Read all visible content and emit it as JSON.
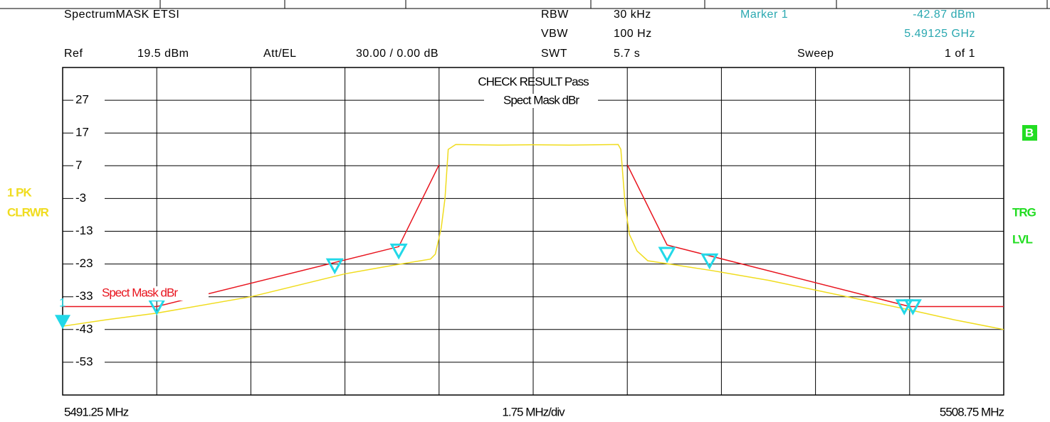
{
  "header": {
    "title": "SpectrumMASK ETSI",
    "rows": [
      [
        "RBW",
        "30 kHz",
        "Marker 1",
        "-42.87 dBm"
      ],
      [
        "VBW",
        "100 Hz",
        "5.49125 GHz"
      ],
      [
        "Ref",
        "19.5 dBm",
        "Att/EL",
        "30.00 / 0.00 dB",
        "SWT",
        "5.7 s",
        "Sweep",
        "1 of 1"
      ]
    ]
  },
  "chart_data": {
    "type": "line",
    "check_result": "CHECK RESULT  Pass",
    "limit_title": "Spect Mask dBr",
    "trace_label": [
      "1 PK",
      "CLRWR"
    ],
    "right_labels": [
      "B",
      "TRG",
      "LVL"
    ],
    "x_start_label": "5491.25 MHz",
    "x_div_label": "1.75 MHz/div",
    "x_stop_label": "5508.75 MHz",
    "xlim": [
      5491.25,
      5508.75
    ],
    "x_divisions": 10,
    "ylim": [
      -63,
      37
    ],
    "yticks": [
      27,
      17,
      7,
      -3,
      -13,
      -23,
      -33,
      -43,
      -53
    ],
    "grid": true,
    "series": [
      {
        "color": "#f0dc1e",
        "x": [
          5491.25,
          5492.07,
          5493.0,
          5494.75,
          5496.5,
          5497.36,
          5498.09,
          5498.18,
          5498.29,
          5498.36,
          5498.42,
          5498.56,
          5499.35,
          5500.0,
          5500.67,
          5501.58,
          5501.63,
          5501.71,
          5501.79,
          5501.93,
          5502.13,
          5502.53,
          5503.32,
          5504.38,
          5505.26,
          5507.0,
          5507.82,
          5508.75
        ],
        "values": [
          -42,
          -40,
          -38,
          -33,
          -26,
          -23.5,
          -21.5,
          -20,
          -12,
          -3,
          12,
          13.5,
          13.3,
          13.4,
          13.3,
          13.5,
          12,
          -5,
          -14,
          -19,
          -22,
          -23,
          -25,
          -28,
          -31,
          -37,
          -40,
          -43
        ]
      },
      {
        "name": "Spect Mask dBr",
        "color": "#e8141e",
        "x": [
          5491.25,
          5493.0,
          5497.5,
          5498.25,
          5500.0,
          5501.75,
          5502.49,
          5507.0,
          5508.75
        ],
        "values": [
          -36,
          -36,
          -17.7,
          7.3,
          null,
          7.3,
          -17.2,
          -36,
          -36
        ]
      }
    ],
    "limit_markers": {
      "color": "#22d8e8",
      "x": [
        5493.0,
        5496.31,
        5497.5,
        5502.49,
        5503.28,
        5506.9,
        5507.06
      ],
      "values": [
        -38,
        -25.5,
        -21,
        -22,
        -24,
        -38,
        -38
      ]
    },
    "marker_1": {
      "label": "1",
      "x": 5491.25,
      "value": -42.87
    }
  }
}
